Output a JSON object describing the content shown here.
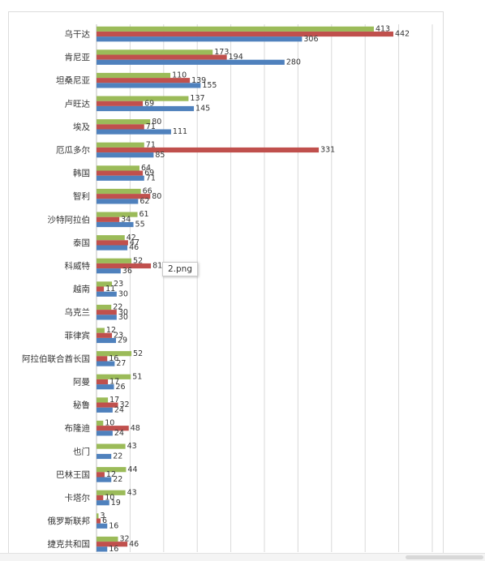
{
  "chart_data": {
    "type": "bar",
    "orientation": "horizontal",
    "categories": [
      "乌干达",
      "肯尼亚",
      "坦桑尼亚",
      "卢旺达",
      "埃及",
      "厄瓜多尔",
      "韩国",
      "智利",
      "沙特阿拉伯",
      "泰国",
      "科威特",
      "越南",
      "乌克兰",
      "菲律宾",
      "阿拉伯联合酋长国",
      "阿曼",
      "秘鲁",
      "布隆迪",
      "也门",
      "巴林王国",
      "卡塔尔",
      "俄罗斯联邦",
      "捷克共和国"
    ],
    "series": [
      {
        "values": [
          413,
          173,
          110,
          137,
          80,
          71,
          64,
          66,
          61,
          42,
          52,
          23,
          22,
          12,
          52,
          51,
          17,
          10,
          43,
          44,
          43,
          3,
          32
        ]
      },
      {
        "values": [
          442,
          194,
          139,
          69,
          71,
          331,
          69,
          80,
          34,
          47,
          81,
          11,
          30,
          23,
          16,
          17,
          32,
          48,
          null,
          12,
          10,
          6,
          46
        ]
      },
      {
        "values": [
          306,
          280,
          155,
          145,
          111,
          85,
          71,
          62,
          55,
          46,
          36,
          30,
          30,
          29,
          27,
          26,
          24,
          24,
          22,
          22,
          19,
          16,
          16
        ]
      }
    ],
    "colors": [
      "#9bbb59",
      "#c0504d",
      "#4f81bd"
    ],
    "xlim": [
      0,
      500
    ],
    "grid": true,
    "legend": "none"
  },
  "tooltip": {
    "text": "2.png"
  }
}
